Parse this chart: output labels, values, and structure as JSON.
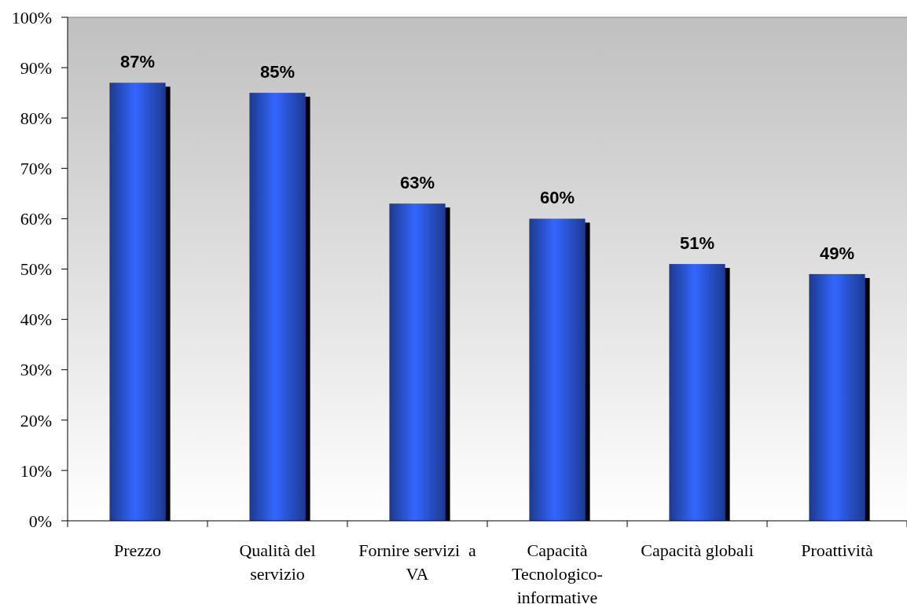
{
  "chart_data": {
    "type": "bar",
    "categories": [
      "Prezzo",
      "Qualità del servizio",
      "Fornire servizi  a VA",
      "Capacità Tecnologico-informative",
      "Capacità globali",
      "Proattività"
    ],
    "values": [
      87,
      85,
      63,
      60,
      51,
      49
    ],
    "color": "#3366ff",
    "value_labels": [
      "87%",
      "85%",
      "63%",
      "60%",
      "51%",
      "49%"
    ],
    "ylim": [
      0,
      100
    ],
    "yticks": [
      {
        "value": 0,
        "label": "0%"
      },
      {
        "value": 10,
        "label": "10%"
      },
      {
        "value": 20,
        "label": "20%"
      },
      {
        "value": 30,
        "label": "30%"
      },
      {
        "value": 40,
        "label": "40%"
      },
      {
        "value": 50,
        "label": "50%"
      },
      {
        "value": 60,
        "label": "60%"
      },
      {
        "value": 70,
        "label": "70%"
      },
      {
        "value": 80,
        "label": "80%"
      },
      {
        "value": 90,
        "label": "90%"
      },
      {
        "value": 100,
        "label": "100%"
      }
    ]
  }
}
